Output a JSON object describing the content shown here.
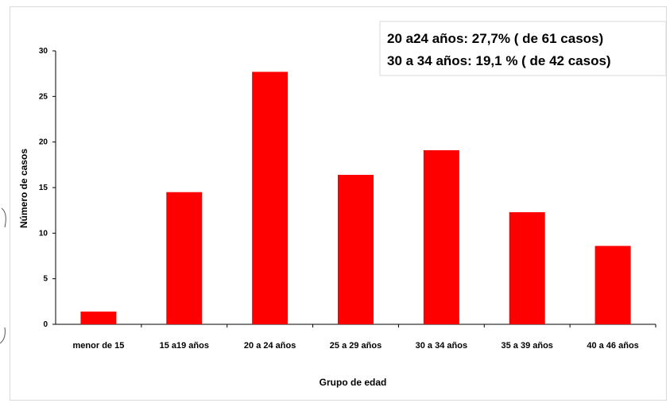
{
  "chart_data": {
    "type": "bar",
    "categories": [
      "menor de 15",
      "15 a19 años",
      "20 a 24 años",
      "25 a 29 años",
      "30 a 34 años",
      "35 a 39 años",
      "40 a 46 años"
    ],
    "values": [
      1.4,
      14.5,
      27.7,
      16.4,
      19.1,
      12.3,
      8.6
    ],
    "xlabel": "Grupo de edad",
    "ylabel": "Número de casos",
    "ylim": [
      0,
      30
    ],
    "yticks": [
      0,
      5,
      10,
      15,
      20,
      25,
      30
    ],
    "grid": false,
    "bar_color": "#ff0000",
    "annotation": {
      "lines": [
        "20 a24 años: 27,7% ( de 61 casos)",
        "30 a 34 años: 19,1 % ( de 42 casos)"
      ]
    }
  }
}
